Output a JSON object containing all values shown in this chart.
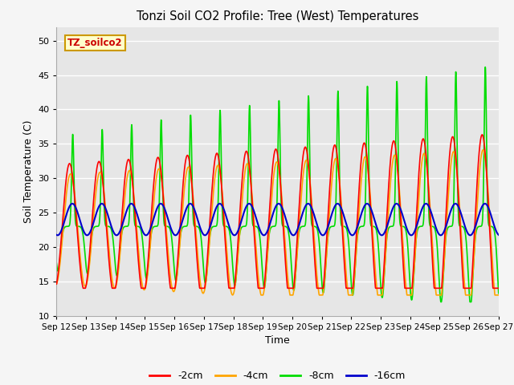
{
  "title": "Tonzi Soil CO2 Profile: Tree (West) Temperatures",
  "xlabel": "Time",
  "ylabel": "Soil Temperature (C)",
  "ylim": [
    10,
    52
  ],
  "yticks": [
    10,
    15,
    20,
    25,
    30,
    35,
    40,
    45,
    50
  ],
  "colors": {
    "-2cm": "#ff0000",
    "-4cm": "#ffa500",
    "-8cm": "#00dd00",
    "-16cm": "#0000cc"
  },
  "label_box_color": "#ffffcc",
  "label_box_edge": "#cc9900",
  "label_text_color": "#cc0000",
  "label_text": "TZ_soilco2",
  "bg_color": "#e6e6e6",
  "fig_bg_color": "#f5f5f5",
  "grid_color": "#ffffff",
  "start_day": 12,
  "end_day": 27
}
